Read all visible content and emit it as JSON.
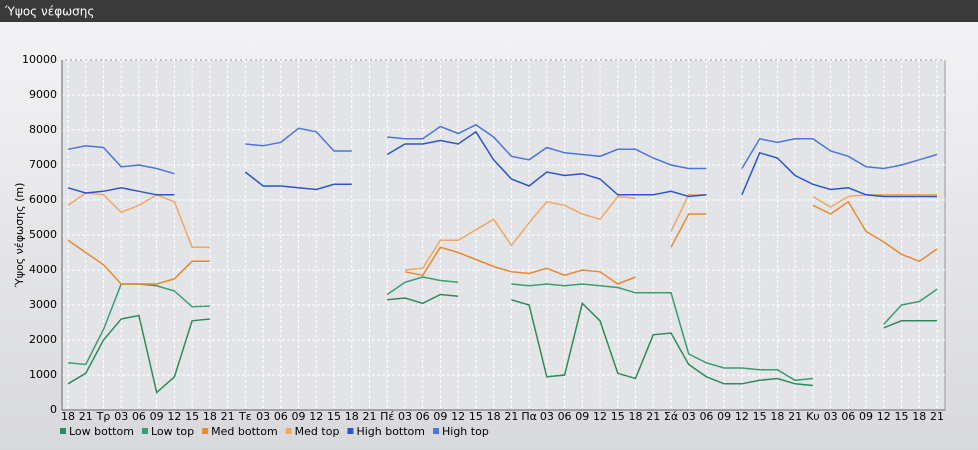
{
  "chart_data": {
    "type": "line",
    "title": "Ύψος νέφωσης",
    "y_label": "Ύψος νέφωσης (m)",
    "categories": [
      "18",
      "21",
      "Τρ",
      "03",
      "06",
      "09",
      "12",
      "15",
      "18",
      "21",
      "Τε",
      "03",
      "06",
      "09",
      "12",
      "15",
      "18",
      "21",
      "Πέ",
      "03",
      "06",
      "09",
      "12",
      "15",
      "18",
      "21",
      "Πα",
      "03",
      "06",
      "09",
      "12",
      "15",
      "18",
      "21",
      "Σά",
      "03",
      "06",
      "09",
      "12",
      "15",
      "18",
      "21",
      "Κυ",
      "03",
      "06",
      "09",
      "12",
      "15",
      "18",
      "21"
    ],
    "ylim": [
      0,
      10000
    ],
    "yticks": [
      0,
      1000,
      2000,
      3000,
      4000,
      5000,
      6000,
      7000,
      8000,
      9000,
      10000
    ],
    "grid": true,
    "series": [
      {
        "name": "Low bottom",
        "color": "#2e8b57",
        "values": [
          750,
          1050,
          2000,
          2600,
          2700,
          500,
          950,
          2550,
          2600,
          null,
          null,
          null,
          null,
          null,
          null,
          null,
          null,
          null,
          3150,
          3200,
          3050,
          3300,
          3250,
          null,
          null,
          3150,
          3000,
          950,
          1000,
          3050,
          2550,
          1050,
          900,
          2150,
          2200,
          1300,
          950,
          750,
          750,
          850,
          900,
          750,
          700,
          null,
          null,
          null,
          2350,
          2550,
          2550,
          2550
        ]
      },
      {
        "name": "Low top",
        "color": "#3a9d6e",
        "values": [
          1350,
          1300,
          2300,
          3600,
          3600,
          3550,
          3400,
          2950,
          2970,
          null,
          null,
          null,
          null,
          null,
          null,
          null,
          null,
          null,
          3300,
          3650,
          3800,
          3700,
          3650,
          null,
          null,
          3600,
          3550,
          3600,
          3550,
          3600,
          3550,
          3500,
          3350,
          3350,
          3350,
          1600,
          1350,
          1200,
          1200,
          1150,
          1150,
          850,
          900,
          null,
          null,
          null,
          2450,
          3000,
          3100,
          3450
        ]
      },
      {
        "name": "Med bottom",
        "color": "#e8892f",
        "values": [
          4850,
          4500,
          4150,
          3600,
          3600,
          3600,
          3750,
          4250,
          4250,
          null,
          null,
          null,
          null,
          null,
          null,
          null,
          null,
          null,
          null,
          3950,
          3850,
          4650,
          4500,
          4300,
          4100,
          3950,
          3900,
          4050,
          3850,
          4000,
          3950,
          3600,
          3800,
          null,
          4650,
          5600,
          5600,
          null,
          null,
          null,
          null,
          null,
          5850,
          5600,
          5950,
          5100,
          4800,
          4450,
          4250,
          4600
        ]
      },
      {
        "name": "Med top",
        "color": "#f0a860",
        "values": [
          5850,
          6200,
          6150,
          5650,
          5850,
          6150,
          5950,
          4650,
          4650,
          null,
          null,
          null,
          null,
          null,
          null,
          null,
          null,
          null,
          null,
          4000,
          4050,
          4850,
          4850,
          5150,
          5450,
          4700,
          5350,
          5950,
          5850,
          5600,
          5450,
          6100,
          6050,
          null,
          5100,
          6150,
          6150,
          null,
          null,
          null,
          null,
          null,
          6100,
          5800,
          6100,
          6150,
          6150,
          6150,
          6150,
          6150
        ]
      },
      {
        "name": "High bottom",
        "color": "#2a55d0",
        "values": [
          6350,
          6200,
          6250,
          6350,
          6250,
          6150,
          6150,
          null,
          null,
          null,
          6800,
          6400,
          6400,
          6350,
          6300,
          6450,
          6450,
          null,
          7300,
          7600,
          7600,
          7700,
          7600,
          7950,
          7150,
          6600,
          6400,
          6800,
          6700,
          6750,
          6600,
          6150,
          6150,
          6150,
          6250,
          6100,
          6150,
          null,
          6150,
          7350,
          7200,
          6700,
          6450,
          6300,
          6350,
          6150,
          6100,
          6100,
          6100,
          6100
        ]
      },
      {
        "name": "High top",
        "color": "#4a74e0",
        "values": [
          7450,
          7550,
          7500,
          6950,
          7000,
          6900,
          6750,
          null,
          null,
          null,
          7600,
          7550,
          7650,
          8050,
          7950,
          7400,
          7400,
          null,
          7800,
          7750,
          7750,
          8100,
          7900,
          8150,
          7800,
          7250,
          7150,
          7500,
          7350,
          7300,
          7250,
          7450,
          7450,
          7200,
          7000,
          6900,
          6900,
          null,
          6900,
          7750,
          7650,
          7750,
          7750,
          7400,
          7250,
          6950,
          6900,
          7000,
          7150,
          7300
        ]
      }
    ]
  }
}
